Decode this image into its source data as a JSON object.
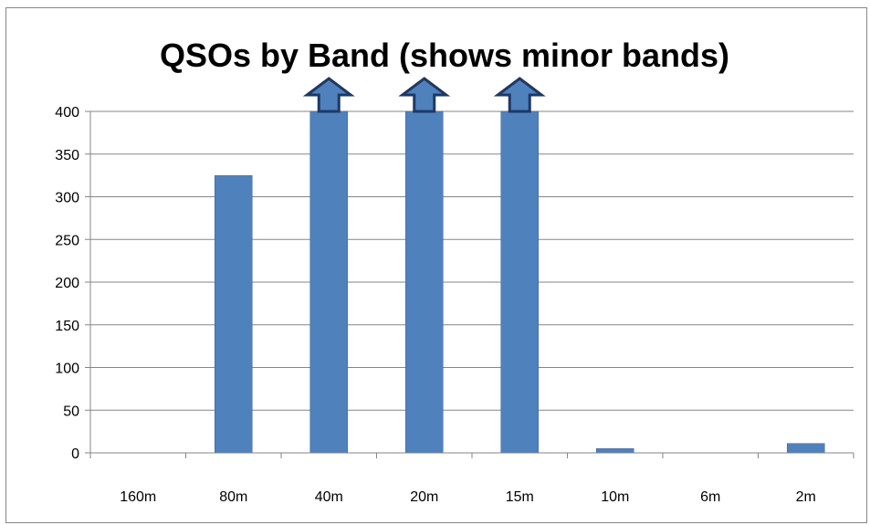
{
  "chart_data": {
    "type": "bar",
    "title": "QSOs by Band (shows minor bands)",
    "xlabel": "",
    "ylabel": "",
    "categories": [
      "160m",
      "80m",
      "40m",
      "20m",
      "15m",
      "10m",
      "6m",
      "2m"
    ],
    "values": [
      0,
      325,
      400,
      400,
      400,
      5,
      0,
      11
    ],
    "overflow_arrows": [
      false,
      false,
      true,
      true,
      true,
      false,
      false,
      false
    ],
    "ylim": [
      0,
      400
    ],
    "yticks": [
      0,
      50,
      100,
      150,
      200,
      250,
      300,
      350,
      400
    ],
    "grid": true,
    "legend": "none",
    "colors": {
      "bar": "#4F81BD",
      "bar_edge": "#3A6397",
      "arrow": "#4F81BD",
      "arrow_edge": "#1F3864",
      "grid": "#868686",
      "axis": "#868686"
    }
  }
}
